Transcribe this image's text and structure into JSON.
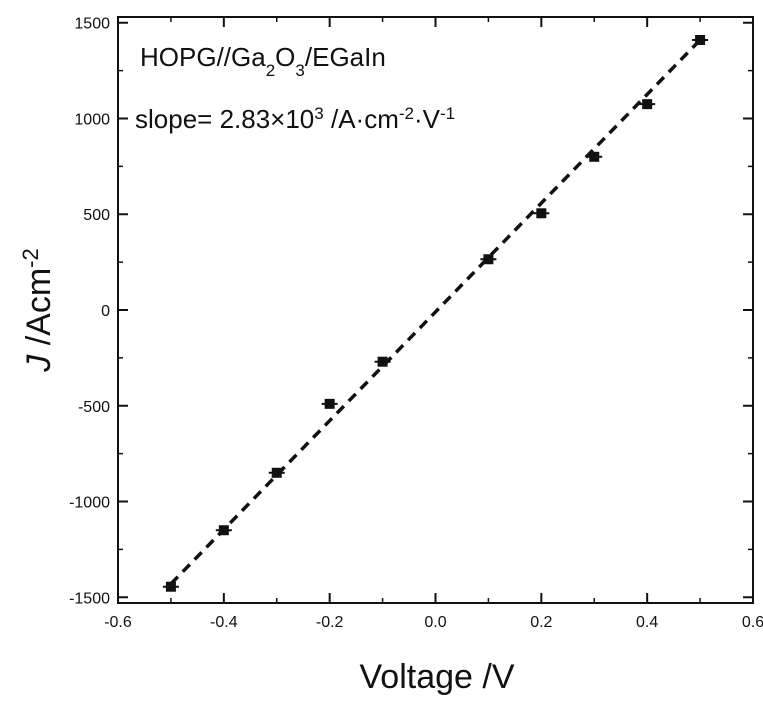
{
  "chart_data": {
    "type": "scatter",
    "title": "",
    "xlabel": "Voltage /V",
    "ylabel": {
      "italic": "J",
      "main": " /Acm",
      "sup": "-2"
    },
    "xlim": [
      -0.6,
      0.6
    ],
    "ylim": [
      -1530,
      1530
    ],
    "x_ticks": [
      -0.6,
      -0.4,
      -0.2,
      0.0,
      0.2,
      0.4,
      0.6
    ],
    "x_tick_labels": [
      "-0.6",
      "-0.4",
      "-0.2",
      "0.0",
      "0.2",
      "0.4",
      "0.6"
    ],
    "y_ticks": [
      -1500,
      -1000,
      -500,
      0,
      500,
      1000,
      1500
    ],
    "y_tick_labels": [
      "-1500",
      "-1000",
      "-500",
      "0",
      "500",
      "1000",
      "1500"
    ],
    "grid": false,
    "series": [
      {
        "x": [
          -0.5,
          -0.4,
          -0.3,
          -0.2,
          -0.1,
          0.1,
          0.2,
          0.3,
          0.4,
          0.5
        ],
        "y": [
          -1445,
          -1150,
          -850,
          -490,
          -270,
          265,
          505,
          800,
          1075,
          1410
        ],
        "marker": "square",
        "color": "#111111"
      }
    ],
    "fit_line": {
      "x": [
        -0.5,
        0.5
      ],
      "y": [
        -1430,
        1410
      ],
      "style": "dashed",
      "color": "#111111"
    },
    "annotations": [
      {
        "id": "sample",
        "segments": [
          {
            "t": "HOPG//Ga"
          },
          {
            "t": "2",
            "s": "sub"
          },
          {
            "t": "O"
          },
          {
            "t": "3",
            "s": "sub"
          },
          {
            "t": "/EGaIn"
          }
        ]
      },
      {
        "id": "slope",
        "segments": [
          {
            "t": "slope= 2.83×10"
          },
          {
            "t": "3",
            "s": "sup"
          },
          {
            "t": " /A·cm"
          },
          {
            "t": "-2",
            "s": "sup"
          },
          {
            "t": "·V"
          },
          {
            "t": "-1",
            "s": "sup"
          }
        ]
      }
    ]
  }
}
